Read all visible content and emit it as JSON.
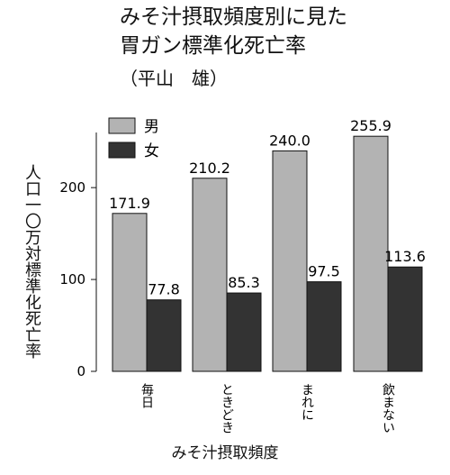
{
  "title": {
    "line1": "みそ汁摂取頻度別に見た",
    "line2": "胃ガン標準化死亡率",
    "author": "（平山　雄）"
  },
  "chart_data": {
    "type": "bar",
    "categories": [
      "毎日",
      "ときどき",
      "まれに",
      "飲まない"
    ],
    "series": [
      {
        "name": "男",
        "values": [
          171.9,
          210.2,
          240.0,
          255.9
        ],
        "labels": [
          "171.9",
          "210.2",
          "240.0",
          "255.9"
        ],
        "color": "#b3b3b3"
      },
      {
        "name": "女",
        "values": [
          77.8,
          85.3,
          97.5,
          113.6
        ],
        "labels": [
          "77.8",
          "85.3",
          "97.5",
          "113.6"
        ],
        "color": "#333333"
      }
    ],
    "ylabel": "人口一〇万対標準化死亡率",
    "xlabel": "みそ汁摂取頻度",
    "ylim": [
      0,
      260
    ],
    "yticks": [
      0,
      100,
      200
    ],
    "legend": "top-left",
    "grid": false
  }
}
